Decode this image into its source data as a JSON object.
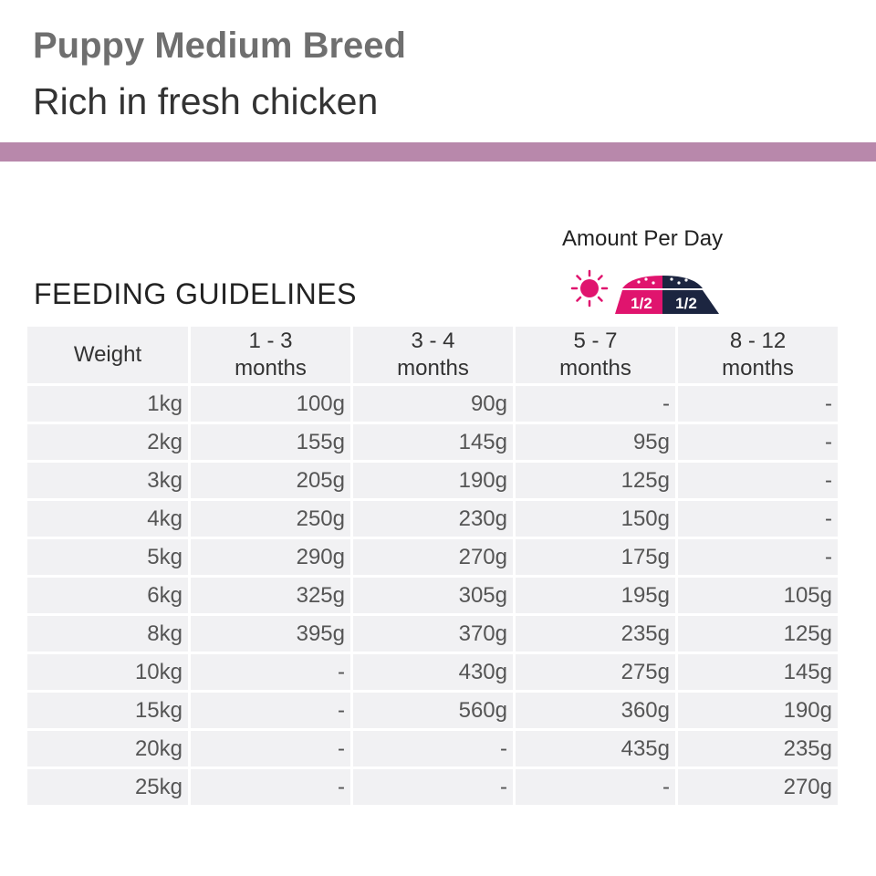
{
  "header": {
    "title": "Puppy Medium Breed",
    "subtitle": "Rich in fresh chicken"
  },
  "section_title": "FEEDING GUIDELINES",
  "amount_label": "Amount Per Day",
  "portion_icon": {
    "left_fraction": "1/2",
    "right_fraction": "1/2",
    "icons": [
      "sun-icon",
      "food-bowl-icon",
      "moon-icon"
    ]
  },
  "colors": {
    "accent_bar": "#b888ab",
    "magenta": "#e0146e",
    "navy": "#1c2540",
    "cell_bg": "#f1f1f3"
  },
  "table": {
    "headers": [
      {
        "line1": "Weight",
        "line2": ""
      },
      {
        "line1": "1 - 3",
        "line2": "months"
      },
      {
        "line1": "3 - 4",
        "line2": "months"
      },
      {
        "line1": "5 - 7",
        "line2": "months"
      },
      {
        "line1": "8 - 12",
        "line2": "months"
      }
    ],
    "rows": [
      [
        "1kg",
        "100g",
        "90g",
        "-",
        "-"
      ],
      [
        "2kg",
        "155g",
        "145g",
        "95g",
        "-"
      ],
      [
        "3kg",
        "205g",
        "190g",
        "125g",
        "-"
      ],
      [
        "4kg",
        "250g",
        "230g",
        "150g",
        "-"
      ],
      [
        "5kg",
        "290g",
        "270g",
        "175g",
        "-"
      ],
      [
        "6kg",
        "325g",
        "305g",
        "195g",
        "105g"
      ],
      [
        "8kg",
        "395g",
        "370g",
        "235g",
        "125g"
      ],
      [
        "10kg",
        "-",
        "430g",
        "275g",
        "145g"
      ],
      [
        "15kg",
        "-",
        "560g",
        "360g",
        "190g"
      ],
      [
        "20kg",
        "-",
        "-",
        "435g",
        "235g"
      ],
      [
        "25kg",
        "-",
        "-",
        "-",
        "270g"
      ]
    ]
  }
}
